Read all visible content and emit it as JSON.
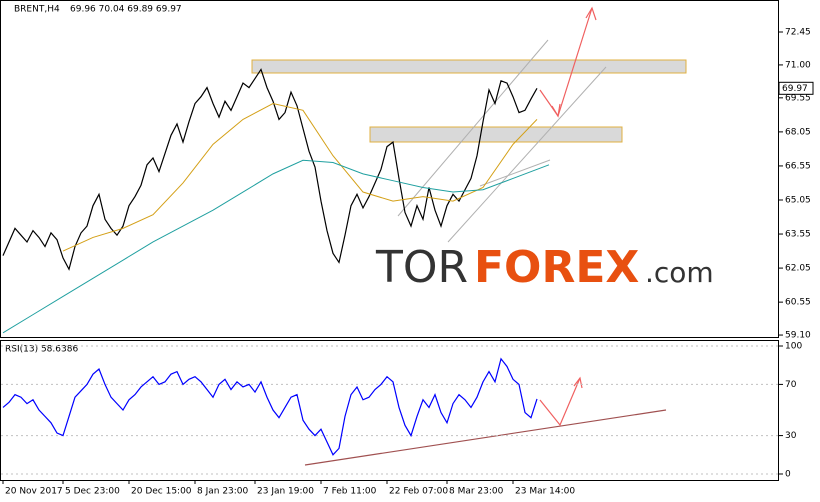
{
  "chart_data": [
    {
      "type": "line",
      "title": "BRENT,H4",
      "subtitle": "69.96 70.04 69.89 69.97",
      "categories": [
        "20 Nov 2017",
        null,
        null,
        null,
        null,
        null,
        null,
        null,
        null,
        null,
        "5 Dec 23:00",
        null,
        null,
        null,
        null,
        null,
        null,
        null,
        null,
        null,
        null,
        "20 Dec 15:00",
        null,
        null,
        null,
        null,
        null,
        null,
        null,
        null,
        null,
        null,
        "8 Jan 23:00",
        null,
        null,
        null,
        null,
        null,
        null,
        null,
        null,
        null,
        "23 Jan 19:00",
        null,
        null,
        null,
        null,
        null,
        null,
        null,
        null,
        null,
        null,
        "7 Feb 11:00",
        null,
        null,
        null,
        null,
        null,
        null,
        null,
        null,
        null,
        null,
        "22 Feb 07:00",
        null,
        null,
        null,
        null,
        null,
        null,
        null,
        null,
        null,
        "8 Mar 23:00",
        null,
        null,
        null,
        null,
        null,
        null,
        null,
        null,
        null,
        null,
        "23 Mar 14:00",
        null,
        null,
        null,
        null
      ],
      "series": [
        {
          "name": "BRENT",
          "color": "#000000",
          "values": [
            62.6,
            63.2,
            63.8,
            63.5,
            63.2,
            63.7,
            63.4,
            63.0,
            63.6,
            63.3,
            62.5,
            62.0,
            63.0,
            63.6,
            63.9,
            64.8,
            65.3,
            64.2,
            63.8,
            63.5,
            63.9,
            64.8,
            65.2,
            65.7,
            66.6,
            66.9,
            66.3,
            67.1,
            67.9,
            68.4,
            67.6,
            68.5,
            69.3,
            69.6,
            70.0,
            69.3,
            68.7,
            69.4,
            69.0,
            69.6,
            70.2,
            70.0,
            70.4,
            70.8,
            70.0,
            69.4,
            68.6,
            68.9,
            69.8,
            69.2,
            68.2,
            67.2,
            66.5,
            65.0,
            63.7,
            62.7,
            62.3,
            63.5,
            64.8,
            65.3,
            64.7,
            65.2,
            65.8,
            66.4,
            67.4,
            67.6,
            66.0,
            64.5,
            63.9,
            64.8,
            64.2,
            65.6,
            64.6,
            63.9,
            64.8,
            65.3,
            65.0,
            65.5,
            66.0,
            67.0,
            68.5,
            69.9,
            69.3,
            70.3,
            70.2,
            69.6,
            68.9,
            69.0,
            69.5,
            69.97
          ]
        },
        {
          "color": "#d4a017",
          "x": [
            10,
            15,
            20,
            25,
            30,
            35,
            40,
            45,
            50,
            55,
            60,
            65,
            70,
            75,
            80,
            85,
            89
          ],
          "values": [
            62.8,
            63.4,
            63.8,
            64.4,
            65.8,
            67.5,
            68.6,
            69.3,
            69.0,
            67.0,
            65.4,
            65.0,
            65.2,
            65.0,
            65.6,
            67.5,
            68.6
          ]
        },
        {
          "color": "#20a0a0",
          "x": [
            0,
            5,
            10,
            15,
            20,
            25,
            30,
            35,
            40,
            45,
            50,
            55,
            60,
            65,
            70,
            75,
            80,
            85,
            91
          ],
          "values": [
            59.2,
            60.0,
            60.8,
            61.6,
            62.4,
            63.2,
            63.9,
            64.6,
            65.4,
            66.2,
            66.8,
            66.7,
            66.2,
            65.9,
            65.6,
            65.4,
            65.5,
            66.0,
            66.6
          ]
        }
      ],
      "ylim": [
        58.97,
        73.86
      ],
      "yticks": [
        {
          "value": 72.45,
          "label": "72.45"
        },
        {
          "value": 71.0,
          "label": "71.00"
        },
        {
          "value": 69.55,
          "label": "69.55"
        },
        {
          "value": 68.05,
          "label": "68.05"
        },
        {
          "value": 66.55,
          "label": "66.55"
        },
        {
          "value": 65.05,
          "label": "65.05"
        },
        {
          "value": 63.55,
          "label": "63.55"
        },
        {
          "value": 62.05,
          "label": "62.05"
        },
        {
          "value": 60.55,
          "label": "60.55"
        },
        {
          "value": 59.1,
          "label": "59.10"
        }
      ],
      "watermark": {
        "tor": "TOR",
        "forex": "FOREX",
        "com": ".com"
      }
    },
    {
      "type": "line",
      "title": "RSI(13) 58.6386",
      "series": [
        {
          "color": "#0000ff",
          "values": [
            52,
            56,
            62,
            60,
            55,
            58,
            50,
            45,
            40,
            32,
            30,
            45,
            60,
            65,
            70,
            78,
            82,
            70,
            60,
            55,
            50,
            58,
            62,
            68,
            72,
            76,
            70,
            72,
            78,
            80,
            70,
            74,
            76,
            72,
            66,
            60,
            70,
            74,
            66,
            72,
            68,
            70,
            64,
            72,
            60,
            50,
            44,
            52,
            60,
            62,
            42,
            35,
            30,
            35,
            25,
            15,
            20,
            45,
            62,
            68,
            58,
            60,
            66,
            70,
            76,
            72,
            52,
            38,
            30,
            45,
            58,
            52,
            62,
            48,
            40,
            55,
            62,
            58,
            52,
            60,
            72,
            80,
            72,
            90,
            84,
            74,
            70,
            48,
            44,
            58.64
          ]
        }
      ],
      "ylim": [
        -4.7,
        104.7
      ],
      "yticks": [
        0,
        30,
        70,
        100
      ]
    }
  ]
}
